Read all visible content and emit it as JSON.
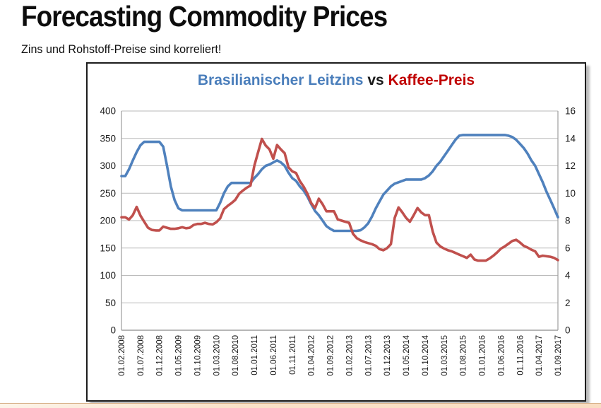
{
  "page": {
    "title": "Forecasting Commodity Prices",
    "subtitle": "Zins und Rohstoff-Preise sind korreliert!"
  },
  "chart": {
    "title_series1": "Brasilianischer Leitzins",
    "title_vs": "vs",
    "title_series2": "Kaffee-Preis",
    "colors": {
      "series1_line": "#4F81BD",
      "series2_line": "#C0504D",
      "title_series1": "#4A7EBB",
      "title_vs": "#1a1a1a",
      "title_series2": "#C00000",
      "gridline": "#bababa",
      "axis_line": "#9e9e9e",
      "tick_text": "#1a1a1a"
    }
  },
  "chart_data": {
    "type": "line",
    "title": "Brasilianischer Leitzins vs Kaffee-Preis",
    "xlabel": "",
    "ylabel_left": "",
    "ylabel_right": "",
    "grid": true,
    "legend_position": "none (series named in colored title)",
    "x_tick_labels": [
      "01.02.2008",
      "01.07.2008",
      "01.12.2008",
      "01.05.2009",
      "01.10.2009",
      "01.03.2010",
      "01.08.2010",
      "01.01.2011",
      "01.06.2011",
      "01.11.2011",
      "01.04.2012",
      "01.09.2012",
      "01.02.2013",
      "01.07.2013",
      "01.12.2013",
      "01.05.2014",
      "01.10.2014",
      "01.03.2015",
      "01.08.2015",
      "01.01.2016",
      "01.06.2016",
      "01.11.2016",
      "01.04.2017",
      "01.09.2017"
    ],
    "x_tick_every_n_months": 5,
    "months_total": 116,
    "left_axis": {
      "min": 0,
      "max": 400,
      "step": 50,
      "ticks": [
        400,
        350,
        300,
        250,
        200,
        150,
        100,
        50,
        0
      ]
    },
    "right_axis": {
      "min": 0,
      "max": 16,
      "step": 2,
      "ticks": [
        16,
        14,
        12,
        10,
        8,
        6,
        4,
        2,
        0
      ]
    },
    "series": [
      {
        "name": "Brasilianischer Leitzins",
        "axis": "right",
        "color": "#4F81BD",
        "values": [
          11.25,
          11.25,
          11.75,
          12.4,
          13.0,
          13.5,
          13.75,
          13.75,
          13.75,
          13.75,
          13.75,
          13.4,
          12.0,
          10.5,
          9.5,
          8.9,
          8.75,
          8.75,
          8.75,
          8.75,
          8.75,
          8.75,
          8.75,
          8.75,
          8.75,
          8.75,
          9.3,
          10.0,
          10.5,
          10.75,
          10.75,
          10.75,
          10.75,
          10.75,
          10.75,
          11.1,
          11.4,
          11.75,
          12.0,
          12.1,
          12.25,
          12.4,
          12.25,
          12.0,
          11.5,
          11.1,
          10.9,
          10.5,
          10.2,
          9.75,
          9.2,
          8.7,
          8.4,
          8.0,
          7.6,
          7.4,
          7.25,
          7.25,
          7.25,
          7.25,
          7.25,
          7.25,
          7.25,
          7.3,
          7.5,
          7.8,
          8.3,
          8.9,
          9.4,
          9.9,
          10.2,
          10.5,
          10.7,
          10.8,
          10.9,
          11.0,
          11.0,
          11.0,
          11.0,
          11.0,
          11.1,
          11.3,
          11.6,
          12.0,
          12.3,
          12.7,
          13.1,
          13.5,
          13.9,
          14.2,
          14.25,
          14.25,
          14.25,
          14.25,
          14.25,
          14.25,
          14.25,
          14.25,
          14.25,
          14.25,
          14.25,
          14.25,
          14.2,
          14.1,
          13.9,
          13.6,
          13.3,
          12.9,
          12.4,
          12.0,
          11.4,
          10.8,
          10.1,
          9.5,
          8.9,
          8.25
        ]
      },
      {
        "name": "Kaffee-Preis",
        "axis": "left",
        "color": "#C0504D",
        "values": [
          206,
          206,
          202,
          210,
          225,
          209,
          198,
          187,
          183,
          182,
          182,
          189,
          187,
          185,
          185,
          186,
          188,
          186,
          187,
          192,
          194,
          194,
          196,
          194,
          193,
          197,
          204,
          221,
          227,
          232,
          238,
          249,
          255,
          260,
          264,
          300,
          325,
          349,
          337,
          330,
          313,
          338,
          330,
          323,
          297,
          290,
          287,
          272,
          262,
          249,
          232,
          223,
          240,
          230,
          217,
          217,
          217,
          202,
          200,
          198,
          196,
          176,
          168,
          164,
          161,
          159,
          157,
          154,
          148,
          146,
          150,
          157,
          205,
          224,
          215,
          205,
          198,
          210,
          223,
          215,
          210,
          210,
          180,
          160,
          153,
          149,
          146,
          144,
          141,
          138,
          135,
          132,
          138,
          129,
          127,
          127,
          127,
          131,
          136,
          142,
          149,
          153,
          158,
          163,
          165,
          160,
          154,
          151,
          147,
          144,
          134,
          136,
          135,
          134,
          132,
          128
        ]
      }
    ]
  }
}
